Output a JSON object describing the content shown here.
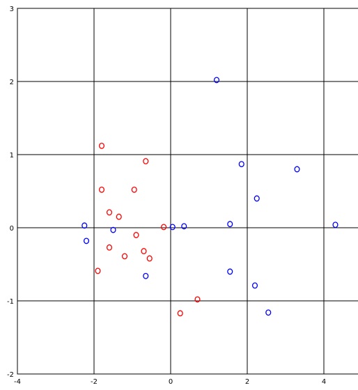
{
  "chart_data": {
    "type": "scatter",
    "title": "",
    "xlabel": "",
    "ylabel": "",
    "xlim": [
      -4,
      5
    ],
    "ylim": [
      -2,
      3
    ],
    "xticks": [
      -4,
      -2,
      0,
      2,
      4
    ],
    "yticks": [
      -2,
      -1,
      0,
      1,
      2,
      3
    ],
    "xtick_labels": [
      "-4",
      "-2",
      "0",
      "2",
      "4"
    ],
    "ytick_labels": [
      "-2",
      "-1",
      "0",
      "1",
      "2",
      "3"
    ],
    "grid": true,
    "marker": "circle-open",
    "series": [
      {
        "color": "#ff0000",
        "points": [
          [
            -1.8,
            1.12
          ],
          [
            -0.65,
            0.91
          ],
          [
            -1.8,
            0.52
          ],
          [
            -0.95,
            0.52
          ],
          [
            -1.6,
            0.21
          ],
          [
            -1.35,
            0.15
          ],
          [
            -0.18,
            0.01
          ],
          [
            -0.9,
            -0.1
          ],
          [
            -1.6,
            -0.27
          ],
          [
            -0.7,
            -0.32
          ],
          [
            -1.2,
            -0.39
          ],
          [
            -0.55,
            -0.42
          ],
          [
            -1.9,
            -0.59
          ],
          [
            0.7,
            -0.98
          ],
          [
            0.25,
            -1.17
          ]
        ]
      },
      {
        "color": "#0000ff",
        "points": [
          [
            1.2,
            2.02
          ],
          [
            1.85,
            0.87
          ],
          [
            3.3,
            0.8
          ],
          [
            2.25,
            0.4
          ],
          [
            -2.25,
            0.03
          ],
          [
            1.55,
            0.05
          ],
          [
            4.3,
            0.04
          ],
          [
            0.05,
            0.01
          ],
          [
            0.35,
            0.02
          ],
          [
            -1.5,
            -0.03
          ],
          [
            -2.2,
            -0.18
          ],
          [
            -0.65,
            -0.66
          ],
          [
            1.55,
            -0.6
          ],
          [
            2.2,
            -0.79
          ],
          [
            2.55,
            -1.16
          ]
        ]
      }
    ]
  }
}
